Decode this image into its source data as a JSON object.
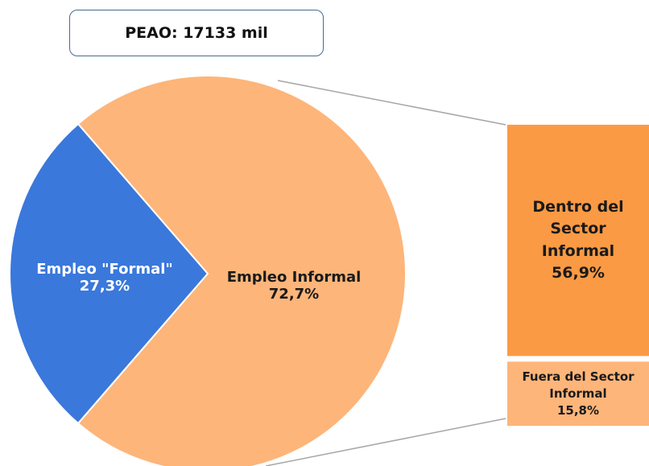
{
  "chart_data": {
    "type": "pie-of-bar",
    "title": "PEAO: 17133 mil",
    "categories": [
      "Empleo \"Formal\"",
      "Empleo Informal"
    ],
    "values": [
      27.3,
      72.7
    ],
    "value_labels": [
      "27,3%",
      "72,7%"
    ],
    "colors": [
      "#3a78db",
      "#fdb57a"
    ],
    "bar": {
      "categories": [
        "Dentro del Sector Informal",
        "Fuera del Sector Informal"
      ],
      "values": [
        56.9,
        15.8
      ],
      "value_labels": [
        "56,9%",
        "15,8%"
      ],
      "colors": [
        "#fb9a44",
        "#fdb57a"
      ]
    }
  }
}
